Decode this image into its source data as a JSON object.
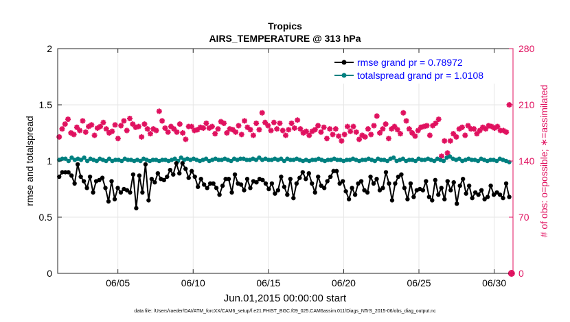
{
  "chart_data": {
    "type": "scatter",
    "title": "Tropics",
    "subtitle": "AIRS_TEMPERATURE @ 313 hPa",
    "xlabel": "Jun.01,2015 00:00:00 start",
    "ylabel_left": "rmse and totalspread",
    "ylabel_right": "# of obs: o=possible; ∗=assimilated",
    "ylim_left": [
      0,
      2
    ],
    "ylim_right": [
      0,
      280
    ],
    "yticks_left": [
      "0",
      "0.5",
      "1",
      "1.5",
      "2"
    ],
    "yticks_right": [
      "0",
      "70",
      "140",
      "210",
      "280"
    ],
    "xlim_days": [
      1.0,
      31.25
    ],
    "xticks": [
      {
        "day": 5,
        "label": "06/05"
      },
      {
        "day": 10,
        "label": "06/10"
      },
      {
        "day": 15,
        "label": "06/15"
      },
      {
        "day": 20,
        "label": "06/20"
      },
      {
        "day": 25,
        "label": "06/25"
      },
      {
        "day": 30,
        "label": "06/30"
      }
    ],
    "grid": true,
    "legend_position": "top-right",
    "series": [
      {
        "name": "rmse grand pr = 0.78972",
        "axis": "left",
        "color": "#000000",
        "marker": "circle",
        "values": [
          0.86,
          0.9,
          0.9,
          0.9,
          0.87,
          0.8,
          0.97,
          0.86,
          0.82,
          0.76,
          0.86,
          0.72,
          0.82,
          0.83,
          0.85,
          0.76,
          0.64,
          0.82,
          0.66,
          0.76,
          0.72,
          0.75,
          0.74,
          0.72,
          0.88,
          0.58,
          0.87,
          0.72,
          0.97,
          0.65,
          0.84,
          0.81,
          0.89,
          0.84,
          0.83,
          0.86,
          0.92,
          0.88,
          0.98,
          0.89,
          0.98,
          0.93,
          0.85,
          0.91,
          0.86,
          0.77,
          0.84,
          0.79,
          0.76,
          0.8,
          0.8,
          0.76,
          0.7,
          0.78,
          0.84,
          0.84,
          0.72,
          0.88,
          0.8,
          0.79,
          0.74,
          0.84,
          0.76,
          0.82,
          0.81,
          0.84,
          0.83,
          0.8,
          0.75,
          0.8,
          0.71,
          0.74,
          0.86,
          0.77,
          0.7,
          0.84,
          0.67,
          0.8,
          0.85,
          0.9,
          0.84,
          0.89,
          0.8,
          0.72,
          0.86,
          0.78,
          0.76,
          0.82,
          0.86,
          0.91,
          0.91,
          0.8,
          0.82,
          0.73,
          0.66,
          0.76,
          0.7,
          0.8,
          0.82,
          0.74,
          0.72,
          0.86,
          0.8,
          0.84,
          0.74,
          0.76,
          0.9,
          0.8,
          0.65,
          0.8,
          0.86,
          0.88,
          0.76,
          0.66,
          0.8,
          0.68,
          0.74,
          0.75,
          0.74,
          0.82,
          0.68,
          0.65,
          0.83,
          0.7,
          0.76,
          0.66,
          0.82,
          0.74,
          0.81,
          0.62,
          0.78,
          0.84,
          0.71,
          0.78,
          0.67,
          0.72,
          0.7,
          0.74,
          0.66,
          0.68,
          0.78,
          0.7,
          0.72,
          0.7,
          0.67,
          0.8,
          0.68
        ]
      },
      {
        "name": "totalspread grand pr = 1.0108",
        "axis": "left",
        "color": "#008080",
        "marker": "circle",
        "values": [
          1.01,
          1.02,
          1.02,
          1.0,
          1.03,
          1.01,
          1.02,
          1.01,
          1.03,
          1.0,
          1.02,
          1.01,
          1.0,
          1.02,
          1.01,
          1.0,
          1.02,
          1.0,
          1.01,
          1.01,
          1.0,
          1.02,
          1.01,
          1.01,
          1.0,
          1.01,
          1.0,
          1.02,
          1.01,
          1.0,
          1.01,
          1.01,
          1.0,
          1.01,
          1.01,
          1.0,
          1.01,
          1.02,
          1.0,
          1.03,
          1.01,
          1.02,
          1.01,
          1.02,
          1.01,
          1.0,
          1.01,
          1.02,
          1.0,
          1.01,
          1.02,
          1.01,
          1.01,
          1.02,
          1.01,
          1.0,
          1.02,
          1.01,
          1.02,
          1.02,
          1.01,
          1.01,
          1.02,
          1.01,
          1.03,
          1.01,
          1.02,
          1.01,
          1.01,
          1.02,
          1.01,
          1.02,
          1.0,
          1.02,
          1.01,
          1.01,
          1.02,
          1.01,
          1.0,
          1.01,
          1.0,
          1.01,
          1.01,
          1.02,
          1.01,
          1.0,
          1.01,
          1.01,
          1.02,
          1.01,
          1.01,
          1.0,
          1.01,
          1.01,
          1.02,
          1.01,
          1.0,
          1.01,
          1.01,
          1.02,
          1.01,
          1.0,
          1.02,
          1.01,
          1.01,
          1.0,
          1.02,
          1.03,
          1.0,
          1.01,
          1.02,
          1.0,
          1.01,
          1.01,
          1.0,
          1.02,
          1.01,
          1.01,
          1.02,
          1.01,
          1.0,
          1.02,
          1.01,
          1.0,
          1.03,
          1.04,
          1.02,
          1.01,
          1.02,
          1.0,
          1.01,
          1.02,
          1.01,
          1.01,
          1.0,
          1.02,
          1.01,
          1.0,
          1.01,
          1.01,
          1.0,
          1.02,
          1.01,
          1.0,
          0.99
        ]
      },
      {
        "name": "# of obs assimilated",
        "axis": "right",
        "color": "#e0115f",
        "marker": "star",
        "values": [
          170,
          180,
          186,
          192,
          175,
          173,
          182,
          178,
          190,
          176,
          183,
          185,
          172,
          181,
          183,
          188,
          180,
          175,
          177,
          185,
          168,
          184,
          190,
          178,
          193,
          186,
          182,
          183,
          170,
          186,
          180,
          174,
          180,
          178,
          202,
          190,
          181,
          176,
          183,
          180,
          176,
          186,
          175,
          167,
          183,
          183,
          178,
          179,
          182,
          181,
          187,
          181,
          183,
          174,
          180,
          189,
          187,
          175,
          180,
          179,
          176,
          184,
          173,
          190,
          182,
          179,
          172,
          187,
          179,
          200,
          188,
          184,
          178,
          188,
          180,
          187,
          178,
          172,
          179,
          187,
          181,
          191,
          180,
          175,
          177,
          172,
          177,
          179,
          184,
          176,
          182,
          168,
          180,
          173,
          180,
          171,
          165,
          173,
          183,
          177,
          183,
          176,
          167,
          172,
          170,
          180,
          173,
          184,
          196,
          175,
          180,
          186,
          168,
          180,
          183,
          179,
          174,
          200,
          190,
          180,
          175,
          171,
          178,
          182,
          183,
          184,
          172,
          184,
          187,
          192,
          146,
          165,
          150,
          165,
          174,
          170,
          180,
          182,
          172,
          184,
          180,
          180,
          174,
          178,
          182,
          180,
          184,
          183,
          181,
          183,
          178,
          178,
          176,
          210
        ]
      },
      {
        "name": "# of obs possible",
        "axis": "right",
        "color": "#e0115f",
        "marker": "open-circle",
        "values": [
          0
        ]
      }
    ]
  },
  "footer_text": "data file: /Users/raeder/DAI/ATM_forcXX/CAM6_setup/f.e21.FHIST_BGC.f09_025.CAM6assim.011/Diags_NTrS_2015-06/obs_diag_output.nc"
}
